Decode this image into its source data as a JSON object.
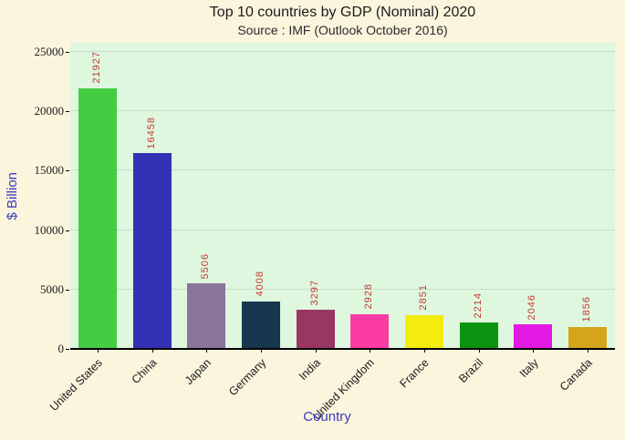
{
  "title": "Top 10 countries by GDP (Nominal) 2020",
  "subtitle": "Source : IMF (Outlook October 2016)",
  "chart_data": {
    "type": "bar",
    "title": "Top 10 countries by GDP (Nominal) 2020",
    "subtitle": "Source : IMF (Outlook October 2016)",
    "xlabel": "Country",
    "ylabel": "$ Billion",
    "categories": [
      "United States",
      "China",
      "Japan",
      "Germany",
      "India",
      "United Kingdom",
      "France",
      "Brazil",
      "Italy",
      "Canada"
    ],
    "values": [
      21927,
      16458,
      5506,
      4008,
      3297,
      2928,
      2851,
      2214,
      2046,
      1856
    ],
    "bar_colors": [
      "#43CD43",
      "#3431B4",
      "#8B749B",
      "#16374E",
      "#993663",
      "#FB3CA2",
      "#F3EC0E",
      "#0B9410",
      "#E318E3",
      "#D4A41B"
    ],
    "ylim": [
      0,
      25000
    ],
    "yticks": [
      0,
      5000,
      10000,
      15000,
      20000,
      25000
    ],
    "grid": true,
    "legend": false,
    "value_labels_shown": true,
    "value_label_color": "#C33A31",
    "axis_title_color": "#3A3AC0",
    "page_background": "#FCF5DE",
    "plot_background": "#DFF7DF",
    "gridline_color": "#C9DCC9"
  }
}
